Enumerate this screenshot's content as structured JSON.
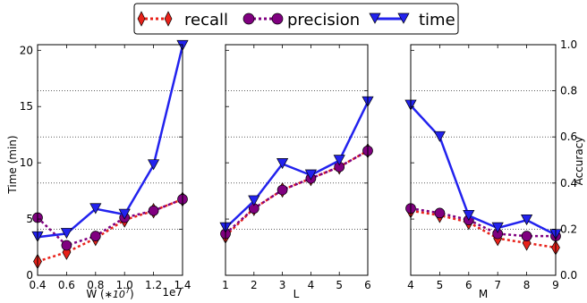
{
  "legend": {
    "placement": "top-center",
    "items": [
      {
        "label": "recall",
        "color": "#e8221a",
        "marker": "diamond",
        "style": "dotted"
      },
      {
        "label": "precision",
        "color": "#800080",
        "marker": "circle",
        "style": "dotted"
      },
      {
        "label": "time",
        "color": "#2222ee",
        "marker": "triangle-down",
        "style": "solid"
      }
    ]
  },
  "left_axis_label": "Time (min)",
  "right_axis_label": "Accuracy",
  "time_ticks": [
    "0",
    "5",
    "10",
    "15",
    "20"
  ],
  "accuracy_ticks": [
    "0.0",
    "0.2",
    "0.4",
    "0.6",
    "0.8",
    "1.0"
  ],
  "chart_data": [
    {
      "type": "line",
      "xlabel": "W (",
      "xlabel_unit": "∗10",
      "xlabel_exp": "7",
      "xlabel_end": ")",
      "x_offset_text": "1e7",
      "xlim": [
        0.4,
        1.4
      ],
      "x_tick_labels": [
        "0.4",
        "0.6",
        "0.8",
        "1.0",
        "1.2",
        "1.4"
      ],
      "x": [
        0.4,
        0.6,
        0.8,
        1.0,
        1.2,
        1.4
      ],
      "time_ylim": [
        0,
        20.5
      ],
      "accuracy_ylim": [
        0.0,
        1.0
      ],
      "series": [
        {
          "name": "recall",
          "axis": "accuracy",
          "values": [
            0.06,
            0.1,
            0.16,
            0.24,
            0.28,
            0.33
          ]
        },
        {
          "name": "precision",
          "axis": "accuracy",
          "values": [
            0.25,
            0.13,
            0.17,
            0.25,
            0.28,
            0.33
          ]
        },
        {
          "name": "time",
          "axis": "time",
          "values": [
            3.4,
            3.7,
            5.9,
            5.4,
            9.8,
            20.4
          ]
        }
      ]
    },
    {
      "type": "line",
      "xlabel": "L",
      "xlim": [
        1,
        6
      ],
      "x_tick_labels": [
        "1",
        "2",
        "3",
        "4",
        "5",
        "6"
      ],
      "x": [
        1,
        2,
        3,
        4,
        5,
        6
      ],
      "time_ylim": [
        0,
        20.5
      ],
      "accuracy_ylim": [
        0.0,
        1.0
      ],
      "series": [
        {
          "name": "recall",
          "axis": "accuracy",
          "values": [
            0.17,
            0.29,
            0.37,
            0.42,
            0.47,
            0.54
          ]
        },
        {
          "name": "precision",
          "axis": "accuracy",
          "values": [
            0.18,
            0.29,
            0.37,
            0.42,
            0.47,
            0.54
          ]
        },
        {
          "name": "time",
          "axis": "time",
          "values": [
            4.2,
            6.6,
            9.9,
            8.9,
            10.2,
            15.4
          ]
        }
      ]
    },
    {
      "type": "line",
      "xlabel": "M",
      "xlim": [
        4,
        9
      ],
      "x_tick_labels": [
        "4",
        "5",
        "6",
        "7",
        "8",
        "9"
      ],
      "x": [
        4,
        5,
        6,
        7,
        8,
        9
      ],
      "time_ylim": [
        0,
        20.5
      ],
      "accuracy_ylim": [
        0.0,
        1.0
      ],
      "series": [
        {
          "name": "recall",
          "axis": "accuracy",
          "values": [
            0.28,
            0.26,
            0.23,
            0.16,
            0.14,
            0.12
          ]
        },
        {
          "name": "precision",
          "axis": "accuracy",
          "values": [
            0.29,
            0.27,
            0.24,
            0.18,
            0.17,
            0.17
          ]
        },
        {
          "name": "time",
          "axis": "time",
          "values": [
            15.1,
            12.3,
            5.3,
            4.2,
            4.9,
            3.6
          ]
        }
      ]
    }
  ]
}
